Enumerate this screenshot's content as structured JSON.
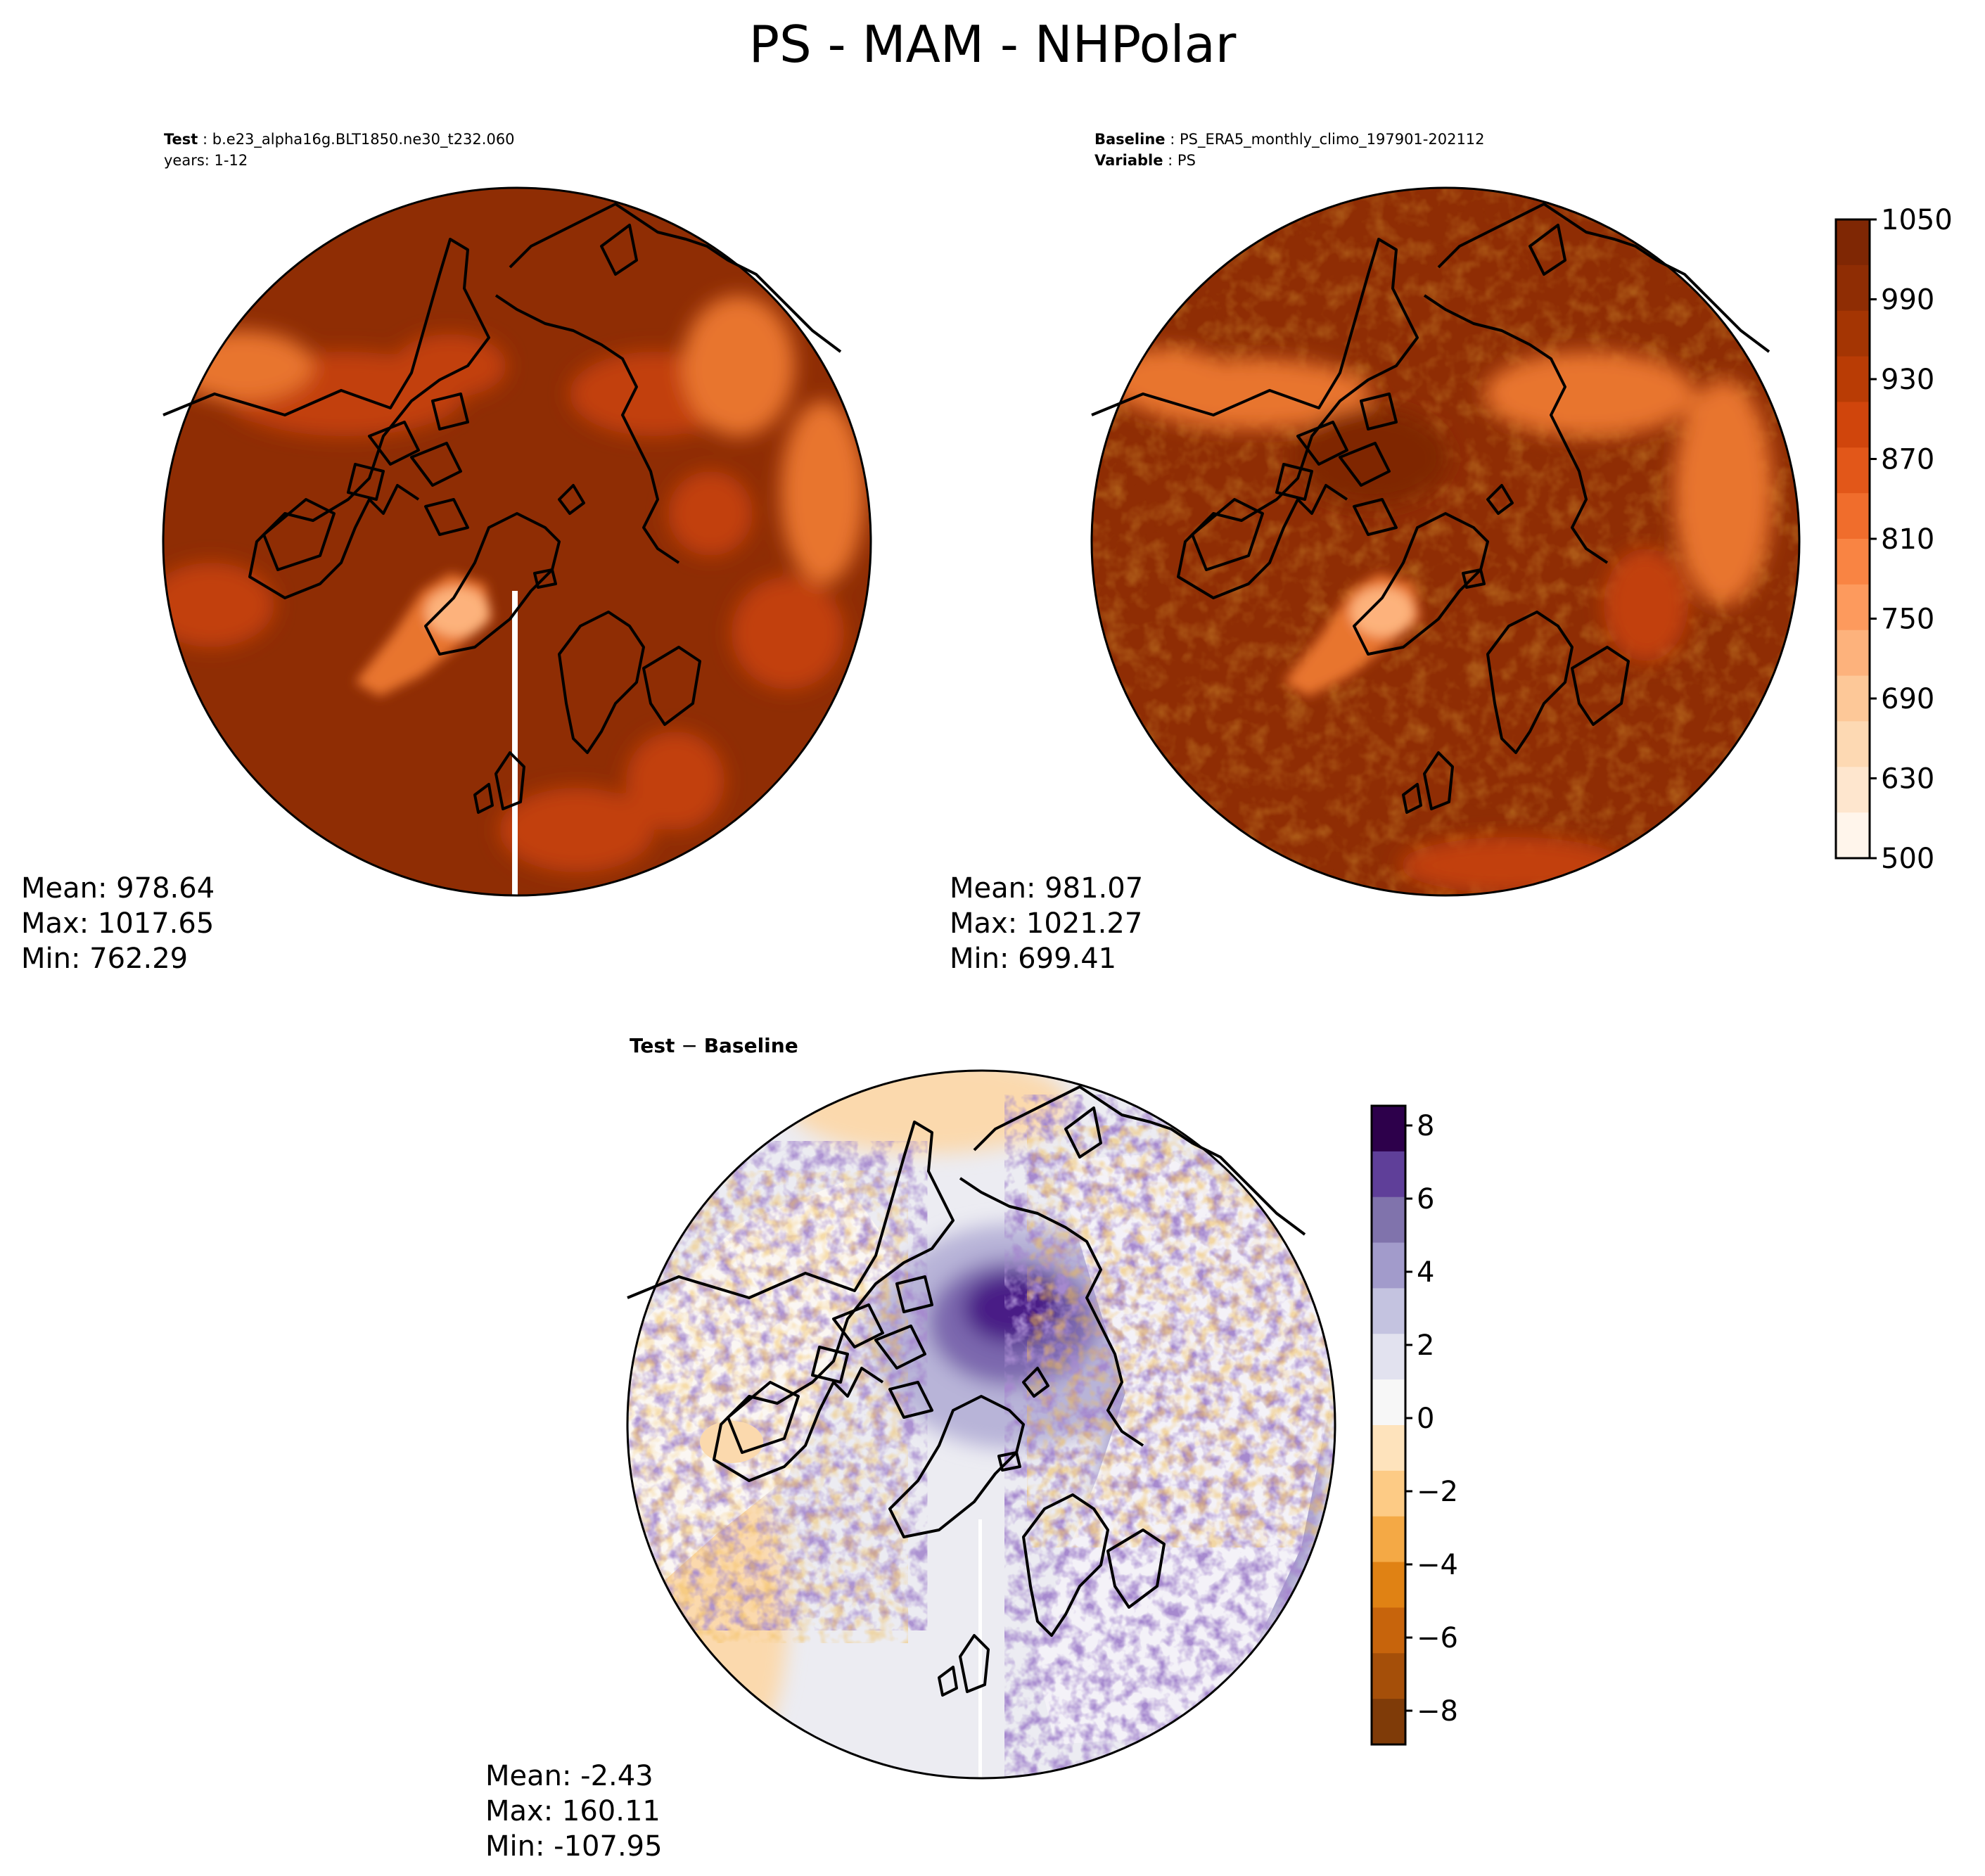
{
  "figure": {
    "title": "PS - MAM - NHPolar"
  },
  "panels": {
    "test": {
      "header_label": "Test",
      "header_value": "b.e23_alpha16g.BLT1850.ne30_t232.060",
      "header_line2": "years: 1-12",
      "stats": {
        "mean": "Mean: 978.64",
        "max": "Max: 1017.65",
        "min": "Min: 762.29"
      }
    },
    "baseline": {
      "header_label": "Baseline",
      "header_value": "PS_ERA5_monthly_climo_197901-202112",
      "variable_label": "Variable",
      "variable_value": "PS",
      "stats": {
        "mean": "Mean: 981.07",
        "max": "Max: 1021.27",
        "min": "Min: 699.41"
      }
    },
    "difference": {
      "title_left": "Test",
      "title_op": " − ",
      "title_right": "Baseline",
      "stats": {
        "mean": "Mean: -2.43",
        "max": "Max: 160.11",
        "min": "Min: -107.95"
      }
    }
  },
  "colorbars": {
    "ps": {
      "ticks": [
        "500",
        "630",
        "690",
        "750",
        "810",
        "870",
        "930",
        "990",
        "1050"
      ],
      "colors": [
        "#fff5eb",
        "#fee6ce",
        "#fdd9b3",
        "#fdc898",
        "#fdb27c",
        "#fd9a5d",
        "#f98443",
        "#f06d2c",
        "#e25719",
        "#d0450c",
        "#b93c05",
        "#a43503",
        "#8f2d04",
        "#7f2704"
      ]
    },
    "diff": {
      "ticks": [
        "8",
        "6",
        "4",
        "2",
        "0",
        "−2",
        "−4",
        "−6",
        "−8"
      ],
      "colors": [
        "#7f3b08",
        "#a54f09",
        "#c7640c",
        "#e08214",
        "#f4a945",
        "#fdcb85",
        "#fee3bc",
        "#f7f7f7",
        "#e2e2ef",
        "#c4c3e0",
        "#a29bcb",
        "#8073ac",
        "#5f3f99",
        "#2d004b"
      ]
    }
  },
  "map_colors": {
    "ocean_high": "#8f2d04",
    "land_mid": "#c2410c",
    "land_low": "#e8742f",
    "greenland": "#fdb27c",
    "arctic_low": "#7f2704",
    "diff_neutral": "#ececf2",
    "diff_positive": "#fbd9ad",
    "diff_negative": "#4a1a86"
  }
}
